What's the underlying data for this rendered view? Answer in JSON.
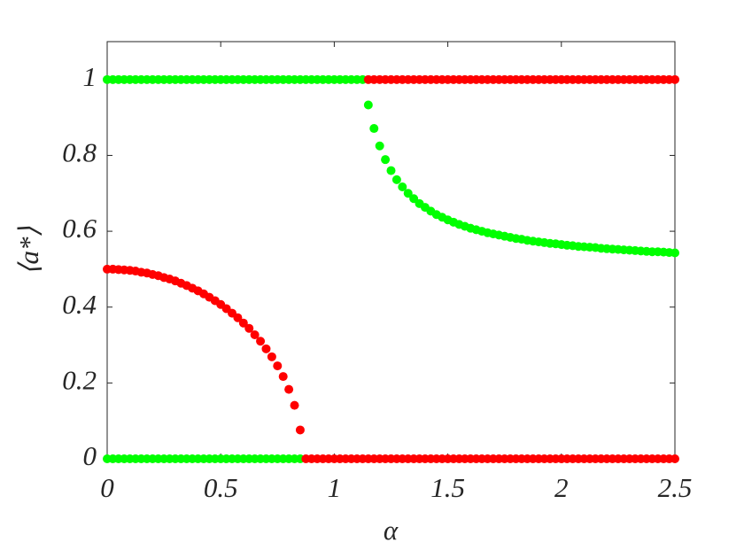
{
  "chart_data": {
    "type": "scatter",
    "xlabel": "α",
    "ylabel": "⟨a*⟩",
    "xlim": [
      0,
      2.5
    ],
    "ylim": [
      0,
      1.1
    ],
    "xticks": [
      0,
      0.5,
      1,
      1.5,
      2,
      2.5
    ],
    "yticks": [
      0,
      0.2,
      0.4,
      0.6,
      0.8,
      1
    ],
    "series": [
      {
        "color": "#00ff00",
        "x": [
          0,
          0.025,
          0.05,
          0.075,
          0.1,
          0.125,
          0.15,
          0.175,
          0.2,
          0.225,
          0.25,
          0.275,
          0.3,
          0.325,
          0.35,
          0.375,
          0.4,
          0.425,
          0.45,
          0.475,
          0.5,
          0.525,
          0.55,
          0.575,
          0.6,
          0.625,
          0.65,
          0.675,
          0.7,
          0.725,
          0.75,
          0.775,
          0.8,
          0.825,
          0.85,
          0.875,
          0.9,
          0.925,
          0.95,
          0.975,
          1,
          1.025,
          1.05,
          1.075,
          1.1,
          1.125
        ],
        "values": [
          1,
          1,
          1,
          1,
          1,
          1,
          1,
          1,
          1,
          1,
          1,
          1,
          1,
          1,
          1,
          1,
          1,
          1,
          1,
          1,
          1,
          1,
          1,
          1,
          1,
          1,
          1,
          1,
          1,
          1,
          1,
          1,
          1,
          1,
          1,
          1,
          1,
          1,
          1,
          1,
          1,
          1,
          1,
          1,
          1,
          1
        ]
      },
      {
        "color": "#ff0000",
        "x": [
          1.15,
          1.175,
          1.2,
          1.225,
          1.25,
          1.275,
          1.3,
          1.325,
          1.35,
          1.375,
          1.4,
          1.425,
          1.45,
          1.475,
          1.5,
          1.525,
          1.55,
          1.575,
          1.6,
          1.625,
          1.65,
          1.675,
          1.7,
          1.725,
          1.75,
          1.775,
          1.8,
          1.825,
          1.85,
          1.875,
          1.9,
          1.925,
          1.95,
          1.975,
          2,
          2.025,
          2.05,
          2.075,
          2.1,
          2.125,
          2.15,
          2.175,
          2.2,
          2.225,
          2.25,
          2.275,
          2.3,
          2.325,
          2.35,
          2.375,
          2.4,
          2.425,
          2.45,
          2.475,
          2.5
        ],
        "values": [
          1,
          1,
          1,
          1,
          1,
          1,
          1,
          1,
          1,
          1,
          1,
          1,
          1,
          1,
          1,
          1,
          1,
          1,
          1,
          1,
          1,
          1,
          1,
          1,
          1,
          1,
          1,
          1,
          1,
          1,
          1,
          1,
          1,
          1,
          1,
          1,
          1,
          1,
          1,
          1,
          1,
          1,
          1,
          1,
          1,
          1,
          1,
          1,
          1,
          1,
          1,
          1,
          1,
          1,
          1
        ]
      },
      {
        "color": "#00ff00",
        "x": [
          0,
          0.025,
          0.05,
          0.075,
          0.1,
          0.125,
          0.15,
          0.175,
          0.2,
          0.225,
          0.25,
          0.275,
          0.3,
          0.325,
          0.35,
          0.375,
          0.4,
          0.425,
          0.45,
          0.475,
          0.5,
          0.525,
          0.55,
          0.575,
          0.6,
          0.625,
          0.65,
          0.675,
          0.7,
          0.725,
          0.75,
          0.775,
          0.8,
          0.825,
          0.85
        ],
        "values": [
          0,
          0,
          0,
          0,
          0,
          0,
          0,
          0,
          0,
          0,
          0,
          0,
          0,
          0,
          0,
          0,
          0,
          0,
          0,
          0,
          0,
          0,
          0,
          0,
          0,
          0,
          0,
          0,
          0,
          0,
          0,
          0,
          0,
          0,
          0
        ]
      },
      {
        "color": "#ff0000",
        "x": [
          0.875,
          0.9,
          0.925,
          0.95,
          0.975,
          1,
          1.025,
          1.05,
          1.075,
          1.1,
          1.125,
          1.15,
          1.175,
          1.2,
          1.225,
          1.25,
          1.275,
          1.3,
          1.325,
          1.35,
          1.375,
          1.4,
          1.425,
          1.45,
          1.475,
          1.5,
          1.525,
          1.55,
          1.575,
          1.6,
          1.625,
          1.65,
          1.675,
          1.7,
          1.725,
          1.75,
          1.775,
          1.8,
          1.825,
          1.85,
          1.875,
          1.9,
          1.925,
          1.95,
          1.975,
          2,
          2.025,
          2.05,
          2.075,
          2.1,
          2.125,
          2.15,
          2.175,
          2.2,
          2.225,
          2.25,
          2.275,
          2.3,
          2.325,
          2.35,
          2.375,
          2.4,
          2.425,
          2.45,
          2.475,
          2.5
        ],
        "values": [
          0,
          0,
          0,
          0,
          0,
          0,
          0,
          0,
          0,
          0,
          0,
          0,
          0,
          0,
          0,
          0,
          0,
          0,
          0,
          0,
          0,
          0,
          0,
          0,
          0,
          0,
          0,
          0,
          0,
          0,
          0,
          0,
          0,
          0,
          0,
          0,
          0,
          0,
          0,
          0,
          0,
          0,
          0,
          0,
          0,
          0,
          0,
          0,
          0,
          0,
          0,
          0,
          0,
          0,
          0,
          0,
          0,
          0,
          0,
          0,
          0,
          0,
          0,
          0,
          0,
          0
        ]
      },
      {
        "color": "#ff0000",
        "x": [
          0,
          0.025,
          0.05,
          0.075,
          0.1,
          0.125,
          0.15,
          0.175,
          0.2,
          0.225,
          0.25,
          0.275,
          0.3,
          0.325,
          0.35,
          0.375,
          0.4,
          0.425,
          0.45,
          0.475,
          0.5,
          0.525,
          0.55,
          0.575,
          0.6,
          0.625,
          0.65,
          0.675,
          0.7,
          0.725,
          0.75,
          0.775,
          0.8,
          0.825,
          0.85
        ],
        "values": [
          0.5,
          0.5,
          0.499,
          0.498,
          0.497,
          0.495,
          0.492,
          0.49,
          0.486,
          0.483,
          0.478,
          0.474,
          0.469,
          0.463,
          0.457,
          0.45,
          0.443,
          0.435,
          0.426,
          0.417,
          0.407,
          0.396,
          0.384,
          0.372,
          0.358,
          0.344,
          0.327,
          0.31,
          0.29,
          0.269,
          0.245,
          0.217,
          0.183,
          0.141,
          0.076
        ]
      },
      {
        "color": "#00ff00",
        "x": [
          1.15,
          1.175,
          1.2,
          1.225,
          1.25,
          1.275,
          1.3,
          1.325,
          1.35,
          1.375,
          1.4,
          1.425,
          1.45,
          1.475,
          1.5,
          1.525,
          1.55,
          1.575,
          1.6,
          1.625,
          1.65,
          1.675,
          1.7,
          1.725,
          1.75,
          1.775,
          1.8,
          1.825,
          1.85,
          1.875,
          1.9,
          1.925,
          1.95,
          1.975,
          2,
          2.025,
          2.05,
          2.075,
          2.1,
          2.125,
          2.15,
          2.175,
          2.2,
          2.225,
          2.25,
          2.275,
          2.3,
          2.325,
          2.35,
          2.375,
          2.4,
          2.425,
          2.45,
          2.475,
          2.5
        ],
        "values": [
          0.933,
          0.871,
          0.825,
          0.789,
          0.76,
          0.736,
          0.717,
          0.7,
          0.686,
          0.673,
          0.663,
          0.653,
          0.644,
          0.637,
          0.63,
          0.624,
          0.618,
          0.613,
          0.608,
          0.604,
          0.6,
          0.596,
          0.593,
          0.59,
          0.587,
          0.584,
          0.581,
          0.579,
          0.576,
          0.574,
          0.572,
          0.57,
          0.568,
          0.567,
          0.565,
          0.563,
          0.562,
          0.56,
          0.559,
          0.558,
          0.557,
          0.555,
          0.554,
          0.553,
          0.552,
          0.551,
          0.55,
          0.549,
          0.548,
          0.547,
          0.546,
          0.546,
          0.545,
          0.544,
          0.543
        ]
      }
    ]
  }
}
